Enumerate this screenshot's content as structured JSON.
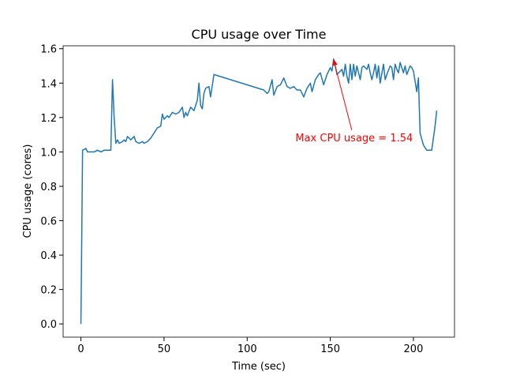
{
  "chart_data": {
    "type": "line",
    "title": "CPU usage over Time",
    "xlabel": "Time (sec)",
    "ylabel": "CPU usage (cores)",
    "color": "#1f77b4",
    "x": [
      0,
      1,
      3,
      4,
      6,
      8,
      10,
      12,
      14,
      16,
      18,
      19,
      20,
      21,
      22,
      23,
      25,
      26,
      27,
      28,
      30,
      32,
      33,
      35,
      37,
      38,
      40,
      42,
      44,
      46,
      48,
      49,
      50,
      52,
      53,
      55,
      57,
      59,
      61,
      62,
      63,
      64,
      66,
      68,
      70,
      71,
      72,
      73,
      74,
      75,
      77,
      78,
      80,
      110,
      112,
      113,
      115,
      116,
      118,
      120,
      122,
      124,
      126,
      128,
      130,
      132,
      134,
      136,
      138,
      139,
      141,
      143,
      144,
      146,
      148,
      150,
      151,
      152,
      153,
      154,
      155,
      157,
      158,
      159,
      160,
      161,
      162,
      163,
      164,
      165,
      166,
      168,
      169,
      170,
      172,
      173,
      174,
      175,
      176,
      177,
      178,
      179,
      180,
      182,
      183,
      184,
      186,
      187,
      188,
      189,
      190,
      191,
      192,
      194,
      195,
      196,
      198,
      199,
      200,
      202,
      203,
      204,
      206,
      208,
      211,
      213,
      214
    ],
    "values": [
      0.0,
      1.01,
      1.02,
      1.0,
      1.0,
      1.0,
      1.01,
      1.0,
      1.01,
      1.01,
      1.01,
      1.42,
      1.2,
      1.05,
      1.07,
      1.05,
      1.06,
      1.07,
      1.06,
      1.09,
      1.07,
      1.09,
      1.06,
      1.05,
      1.06,
      1.05,
      1.06,
      1.08,
      1.11,
      1.14,
      1.15,
      1.22,
      1.19,
      1.21,
      1.2,
      1.23,
      1.22,
      1.23,
      1.26,
      1.2,
      1.23,
      1.21,
      1.26,
      1.24,
      1.3,
      1.4,
      1.27,
      1.25,
      1.34,
      1.37,
      1.38,
      1.32,
      1.45,
      1.36,
      1.34,
      1.35,
      1.42,
      1.33,
      1.38,
      1.39,
      1.43,
      1.38,
      1.37,
      1.38,
      1.36,
      1.36,
      1.32,
      1.37,
      1.4,
      1.35,
      1.42,
      1.45,
      1.46,
      1.39,
      1.45,
      1.49,
      1.47,
      1.54,
      1.5,
      1.45,
      1.46,
      1.48,
      1.44,
      1.51,
      1.44,
      1.4,
      1.51,
      1.42,
      1.51,
      1.44,
      1.5,
      1.42,
      1.49,
      1.5,
      1.48,
      1.51,
      1.46,
      1.42,
      1.46,
      1.51,
      1.43,
      1.5,
      1.4,
      1.51,
      1.42,
      1.45,
      1.5,
      1.49,
      1.42,
      1.51,
      1.48,
      1.46,
      1.52,
      1.46,
      1.5,
      1.45,
      1.5,
      1.49,
      1.47,
      1.35,
      1.43,
      1.11,
      1.04,
      1.01,
      1.01,
      1.15,
      1.24
    ],
    "xlim": [
      -10.7,
      224.7
    ],
    "ylim": [
      -0.077,
      1.617
    ],
    "xticks": [
      0,
      50,
      100,
      150,
      200
    ],
    "yticks": [
      {
        "value": 0,
        "label": "0.0"
      },
      {
        "value": 0.2,
        "label": "0.2"
      },
      {
        "value": 0.4,
        "label": "0.4"
      },
      {
        "value": 0.6,
        "label": "0.6"
      },
      {
        "value": 0.8,
        "label": "0.8"
      },
      {
        "value": 1.0,
        "label": "1.0"
      },
      {
        "value": 1.2,
        "label": "1.2"
      },
      {
        "value": 1.4,
        "label": "1.4"
      },
      {
        "value": 1.6,
        "label": "1.6"
      }
    ],
    "annotation": {
      "text": "Max CPU usage = 1.54",
      "x": 152,
      "y": 1.54,
      "color": "#ff0000"
    }
  }
}
